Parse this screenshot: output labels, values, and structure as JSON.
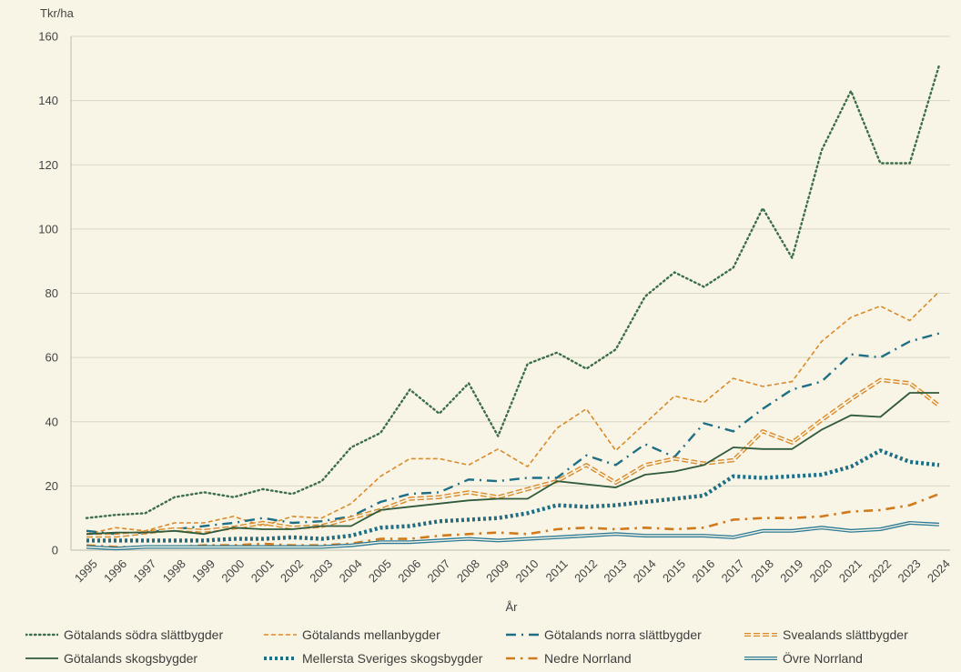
{
  "chart_data": {
    "type": "line",
    "ylabel": "Tkr/ha",
    "xlabel": "År",
    "ylim": [
      0,
      160
    ],
    "yticks": [
      0,
      20,
      40,
      60,
      80,
      100,
      120,
      140,
      160
    ],
    "grid": "horizontal",
    "legend_position": "bottom",
    "categories": [
      "1995",
      "1996",
      "1997",
      "1998",
      "1999",
      "2000",
      "2001",
      "2002",
      "2003",
      "2004",
      "2005",
      "2006",
      "2007",
      "2008",
      "2009",
      "2010",
      "2011",
      "2012",
      "2013",
      "2014",
      "2015",
      "2016",
      "2017",
      "2018",
      "2019",
      "2020",
      "2021",
      "2022",
      "2023",
      "2024"
    ],
    "series": [
      {
        "name": "Götalands södra slättbygder",
        "color": "#3c6e4a",
        "style": "dotted",
        "values": [
          10,
          11,
          11.5,
          16.5,
          18,
          16.5,
          19,
          17.5,
          21.5,
          32,
          36.5,
          50,
          42.5,
          52,
          35.5,
          58,
          61.5,
          56.5,
          62.5,
          79,
          86.5,
          82,
          88,
          106.5,
          91,
          124.5,
          143,
          120.5,
          120.5,
          151
        ]
      },
      {
        "name": "Götalands mellanbygder",
        "color": "#d98a2b",
        "style": "dashed",
        "values": [
          5,
          7,
          6,
          8.5,
          8.5,
          10.5,
          7.5,
          10.5,
          10,
          14.5,
          23,
          28.5,
          28.5,
          26.5,
          31.5,
          26,
          38,
          44,
          31,
          39.5,
          48,
          46,
          53.5,
          51,
          52.5,
          65,
          72.5,
          76,
          71.5,
          80.5
        ]
      },
      {
        "name": "Götalands norra slättbygder",
        "color": "#1e6e85",
        "style": "dashdot",
        "values": [
          6,
          5,
          5.5,
          6.5,
          7.5,
          8.5,
          10,
          8.5,
          9,
          10.5,
          15,
          17.5,
          18,
          22,
          21.5,
          22.5,
          22.5,
          29.5,
          26.5,
          33,
          29,
          39.5,
          37,
          44,
          50,
          52.5,
          61,
          60,
          65,
          67.5
        ]
      },
      {
        "name": "Svealands slättbygder",
        "color": "#d98a2b",
        "style": "double-dashed",
        "values": [
          4.5,
          4.5,
          5.5,
          6.5,
          6,
          7,
          8.5,
          7,
          7.5,
          10,
          12.5,
          16,
          16.5,
          18,
          16.5,
          19,
          21.5,
          26.5,
          21,
          26.5,
          28.5,
          27,
          28,
          37,
          33.5,
          40.5,
          47,
          53,
          52,
          45
        ]
      },
      {
        "name": "Götalands skogsbygder",
        "color": "#2f5a3c",
        "style": "solid",
        "values": [
          5,
          5.5,
          5.5,
          6,
          5,
          7,
          6.5,
          6.5,
          7.5,
          7.5,
          12.5,
          13.5,
          14.5,
          15.5,
          16,
          16,
          21.5,
          20.5,
          19.5,
          23.5,
          24.5,
          26.5,
          32,
          31.5,
          31.5,
          37.5,
          42,
          41.5,
          49,
          49
        ]
      },
      {
        "name": "Mellersta Sveriges skogsbygder",
        "color": "#1e6e85",
        "style": "thick-dotted",
        "values": [
          3,
          3,
          3,
          3,
          3,
          3.5,
          3.5,
          4,
          3.5,
          4.5,
          7,
          7.5,
          9,
          9.5,
          10,
          11.5,
          14,
          13.5,
          14,
          15,
          16,
          17,
          23,
          22.5,
          23,
          23.5,
          26,
          31,
          27.5,
          26.5
        ]
      },
      {
        "name": "Nedre Norrland",
        "color": "#d07a1c",
        "style": "longdash-dot",
        "values": [
          1.5,
          1,
          1,
          1,
          1.5,
          1.5,
          2,
          1.5,
          1.5,
          2,
          3.5,
          3.5,
          4.5,
          5,
          5.5,
          5,
          6.5,
          7,
          6.5,
          7,
          6.5,
          7,
          9.5,
          10,
          10,
          10.5,
          12,
          12.5,
          14,
          17.5
        ]
      },
      {
        "name": "Övre Norrland",
        "color": "#2c7a96",
        "style": "double-solid",
        "values": [
          1,
          0.5,
          1,
          1,
          1,
          1,
          1,
          1,
          1,
          1.5,
          2.5,
          2.5,
          3,
          3.5,
          3,
          3.5,
          4,
          4.5,
          5,
          4.5,
          4.5,
          4.5,
          4,
          6,
          6,
          7,
          6,
          6.5,
          8.5,
          8
        ]
      }
    ]
  }
}
